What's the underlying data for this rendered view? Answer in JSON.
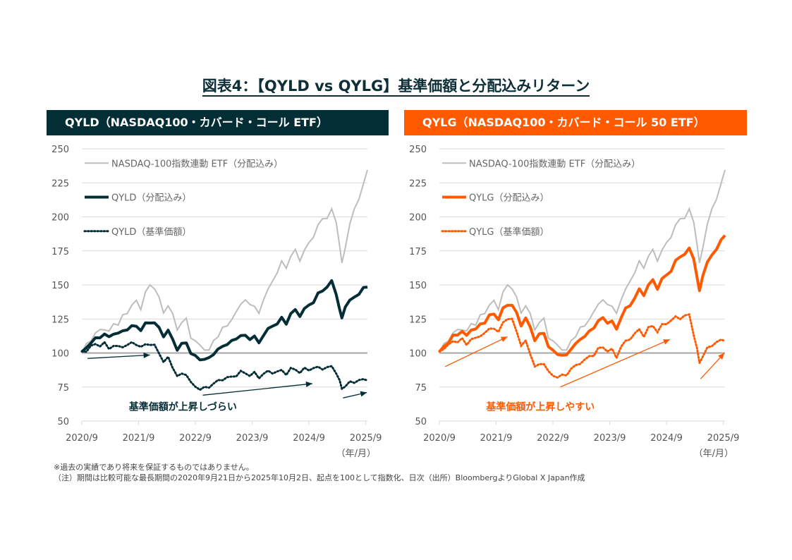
{
  "title": "図表4：【QYLD vs QYLG】基準価額と分配込みリターン",
  "colors": {
    "qyld": "#032e36",
    "qylg": "#ff5a00",
    "nasdaq": "#bdbdbd",
    "grid": "#d9d9d9",
    "baseline": "#a6a6a6"
  },
  "notes": [
    "※過去の実績であり将来を保証するものではありません。",
    "（注）期間は比較可能な最長期間の2020年9月21日から2025年10月2日、起点を100として指数化、日次（出所）BloombergよりGlobal X Japan作成"
  ],
  "chart_data": [
    {
      "type": "line",
      "title": "QYLD（NASDAQ100・カバード・コール ETF）",
      "xlabel": "（年/月）",
      "ylabel": "",
      "ylim": [
        50,
        250
      ],
      "yticks": [
        50,
        75,
        100,
        125,
        150,
        175,
        200,
        225,
        250
      ],
      "xticks": [
        "2020/9",
        "2021/9",
        "2022/9",
        "2023/9",
        "2024/9",
        "2025/9"
      ],
      "xlim": [
        2020.72,
        2025.75
      ],
      "grid": true,
      "baseline": 100,
      "legend_position": "top-left",
      "callout": "基準価額が上昇しづらい",
      "x": [
        2020.72,
        2020.8,
        2020.88,
        2020.96,
        2021.04,
        2021.12,
        2021.2,
        2021.28,
        2021.36,
        2021.44,
        2021.52,
        2021.6,
        2021.68,
        2021.76,
        2021.84,
        2021.92,
        2022.0,
        2022.08,
        2022.16,
        2022.24,
        2022.32,
        2022.4,
        2022.48,
        2022.56,
        2022.64,
        2022.72,
        2022.8,
        2022.88,
        2022.96,
        2023.04,
        2023.12,
        2023.2,
        2023.28,
        2023.36,
        2023.44,
        2023.52,
        2023.6,
        2023.68,
        2023.76,
        2023.84,
        2023.92,
        2024.0,
        2024.08,
        2024.16,
        2024.24,
        2024.32,
        2024.4,
        2024.48,
        2024.56,
        2024.64,
        2024.72,
        2024.8,
        2024.88,
        2024.96,
        2025.04,
        2025.12,
        2025.2,
        2025.26,
        2025.3,
        2025.36,
        2025.44,
        2025.52,
        2025.6,
        2025.68,
        2025.75
      ],
      "series": [
        {
          "name": "NASDAQ-100指数連動 ETF（分配込み）",
          "style": "solid-thin",
          "values": [
            100,
            106,
            110,
            114,
            117,
            118,
            115,
            122,
            121,
            127,
            130,
            135,
            138,
            133,
            144,
            150,
            148,
            140,
            130,
            135,
            128,
            118,
            122,
            125,
            112,
            108,
            106,
            103,
            101,
            110,
            112,
            118,
            121,
            124,
            130,
            137,
            138,
            136,
            135,
            128,
            140,
            147,
            152,
            160,
            167,
            162,
            172,
            175,
            168,
            176,
            180,
            186,
            194,
            198,
            200,
            205,
            196,
            180,
            165,
            178,
            195,
            205,
            214,
            224,
            234
          ]
        },
        {
          "name": "QYLD（分配込み）",
          "style": "solid-thick",
          "values": [
            100,
            104,
            108,
            110,
            112,
            114,
            111,
            115,
            114,
            116,
            118,
            119,
            120,
            117,
            121,
            123,
            122,
            118,
            113,
            116,
            110,
            103,
            106,
            108,
            100,
            97,
            96,
            95,
            96,
            100,
            102,
            105,
            107,
            108,
            111,
            113,
            112,
            111,
            112,
            107,
            114,
            117,
            120,
            122,
            125,
            122,
            129,
            131,
            128,
            132,
            135,
            138,
            143,
            146,
            149,
            152,
            144,
            132,
            125,
            135,
            138,
            141,
            144,
            147,
            149
          ]
        },
        {
          "name": "QYLD（基準価額）",
          "style": "dotted",
          "values": [
            100,
            102,
            105,
            106,
            106,
            107,
            103,
            106,
            104,
            105,
            106,
            107,
            107,
            104,
            106,
            107,
            105,
            100,
            94,
            96,
            90,
            83,
            84,
            85,
            78,
            75,
            74,
            74,
            75,
            78,
            79,
            81,
            82,
            82,
            84,
            86,
            85,
            84,
            85,
            82,
            85,
            86,
            86,
            86,
            87,
            85,
            88,
            88,
            86,
            88,
            88,
            89,
            89,
            89,
            89,
            90,
            86,
            79,
            74,
            76,
            78,
            79,
            80,
            80,
            81
          ]
        }
      ],
      "annotation_arrows": 3
    },
    {
      "type": "line",
      "title": "QYLG（NASDAQ100・カバード・コール 50 ETF）",
      "xlabel": "（年/月）",
      "ylabel": "",
      "ylim": [
        50,
        250
      ],
      "yticks": [
        50,
        75,
        100,
        125,
        150,
        175,
        200,
        225,
        250
      ],
      "xticks": [
        "2020/9",
        "2021/9",
        "2022/9",
        "2023/9",
        "2024/9",
        "2025/9"
      ],
      "xlim": [
        2020.72,
        2025.75
      ],
      "grid": true,
      "baseline": 100,
      "legend_position": "top-left",
      "callout": "基準価額が上昇しやすい",
      "x": [
        2020.72,
        2020.8,
        2020.88,
        2020.96,
        2021.04,
        2021.12,
        2021.2,
        2021.28,
        2021.36,
        2021.44,
        2021.52,
        2021.6,
        2021.68,
        2021.76,
        2021.84,
        2021.92,
        2022.0,
        2022.08,
        2022.16,
        2022.24,
        2022.32,
        2022.4,
        2022.48,
        2022.56,
        2022.64,
        2022.72,
        2022.8,
        2022.88,
        2022.96,
        2023.04,
        2023.12,
        2023.2,
        2023.28,
        2023.36,
        2023.44,
        2023.52,
        2023.6,
        2023.68,
        2023.76,
        2023.84,
        2023.92,
        2024.0,
        2024.08,
        2024.16,
        2024.24,
        2024.32,
        2024.4,
        2024.48,
        2024.56,
        2024.64,
        2024.72,
        2024.8,
        2024.88,
        2024.96,
        2025.04,
        2025.12,
        2025.2,
        2025.26,
        2025.3,
        2025.36,
        2025.44,
        2025.52,
        2025.6,
        2025.68,
        2025.75
      ],
      "series": [
        {
          "name": "NASDAQ-100指数連動 ETF（分配込み）",
          "style": "solid-thin",
          "values": [
            100,
            106,
            110,
            114,
            117,
            118,
            115,
            122,
            121,
            127,
            130,
            135,
            138,
            133,
            144,
            150,
            148,
            140,
            130,
            135,
            128,
            118,
            122,
            125,
            112,
            108,
            106,
            103,
            101,
            110,
            112,
            118,
            121,
            124,
            130,
            137,
            138,
            136,
            135,
            128,
            140,
            147,
            152,
            160,
            167,
            162,
            172,
            175,
            168,
            176,
            180,
            186,
            194,
            198,
            200,
            205,
            196,
            180,
            165,
            178,
            195,
            205,
            214,
            224,
            234
          ]
        },
        {
          "name": "QYLG（分配込み）",
          "style": "solid-thick",
          "values": [
            100,
            105,
            108,
            112,
            114,
            116,
            112,
            118,
            117,
            121,
            123,
            127,
            129,
            125,
            132,
            136,
            135,
            129,
            121,
            125,
            119,
            110,
            113,
            115,
            105,
            101,
            100,
            98,
            98,
            104,
            106,
            110,
            113,
            115,
            119,
            124,
            125,
            123,
            123,
            117,
            127,
            132,
            135,
            141,
            146,
            143,
            150,
            153,
            148,
            154,
            157,
            161,
            167,
            171,
            173,
            176,
            170,
            155,
            145,
            158,
            166,
            172,
            177,
            182,
            187
          ]
        },
        {
          "name": "QYLG（基準価額）",
          "style": "dotted",
          "values": [
            100,
            104,
            106,
            108,
            109,
            110,
            106,
            111,
            110,
            113,
            115,
            117,
            119,
            115,
            122,
            126,
            124,
            116,
            106,
            108,
            100,
            90,
            91,
            93,
            86,
            83,
            83,
            83,
            84,
            89,
            90,
            93,
            95,
            97,
            99,
            103,
            104,
            102,
            102,
            97,
            105,
            108,
            111,
            114,
            117,
            113,
            118,
            120,
            116,
            120,
            122,
            124,
            126,
            126,
            127,
            128,
            114,
            102,
            93,
            98,
            103,
            106,
            108,
            109,
            110
          ]
        }
      ],
      "annotation_arrows": 3
    }
  ]
}
